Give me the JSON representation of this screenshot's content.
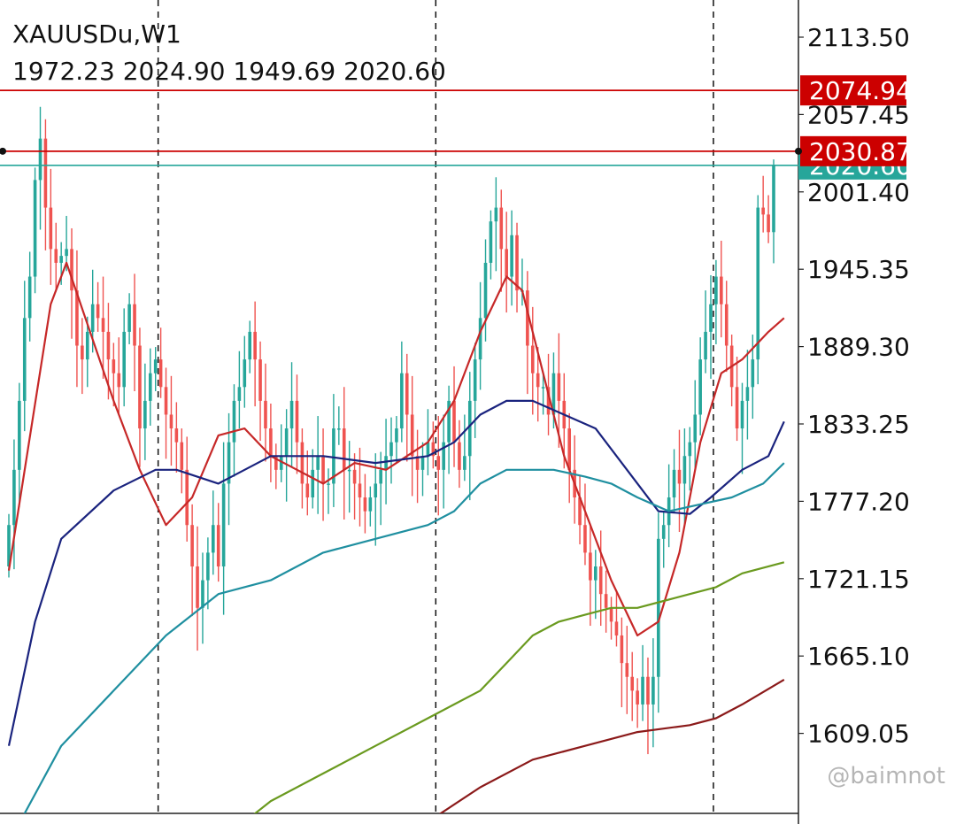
{
  "header": {
    "symbol_timeframe": "XAUUSDu,W1",
    "ohlc": "1972.23 2024.90 1949.69 2020.60"
  },
  "watermark": "@baimnot",
  "colors": {
    "bull": "#26a69a",
    "bear": "#ef5350",
    "hline": "#cc0000",
    "bid_line": "#26a69a",
    "ma_red": "#c62828",
    "ma_navy": "#1a237e",
    "ma_teal": "#1f8fa0",
    "ma_green": "#6a9a1f",
    "ma_maroon": "#8b1a1a"
  },
  "chart_data": {
    "type": "candlestick",
    "symbol": "XAUUSDu",
    "timeframe": "W1",
    "last_bar": {
      "open": 1972.23,
      "high": 2024.9,
      "low": 1949.69,
      "close": 2020.6
    },
    "price_axis": {
      "ticks": [
        "2113.50",
        "2057.45",
        "2001.40",
        "1945.35",
        "1889.30",
        "1833.25",
        "1777.20",
        "1721.15",
        "1665.10",
        "1609.05"
      ],
      "range": [
        1545,
        2140
      ]
    },
    "horizontal_lines": [
      {
        "price": 2074.94,
        "label": "2074.94",
        "color": "#cc0000"
      },
      {
        "price": 2030.87,
        "label": "2030.87",
        "color": "#cc0000"
      }
    ],
    "bid": {
      "price": 2020.6,
      "label": "2020.60",
      "color": "#26a69a"
    },
    "closes": [
      1760,
      1800,
      1850,
      1910,
      1940,
      2010,
      2040,
      1990,
      1960,
      1950,
      1955,
      1960,
      1930,
      1890,
      1880,
      1900,
      1920,
      1910,
      1900,
      1880,
      1870,
      1860,
      1900,
      1920,
      1890,
      1830,
      1850,
      1870,
      1880,
      1860,
      1840,
      1830,
      1820,
      1800,
      1760,
      1730,
      1700,
      1720,
      1740,
      1760,
      1730,
      1790,
      1820,
      1850,
      1860,
      1880,
      1900,
      1880,
      1850,
      1830,
      1810,
      1800,
      1810,
      1830,
      1850,
      1820,
      1790,
      1780,
      1800,
      1810,
      1790,
      1790,
      1830,
      1830,
      1800,
      1800,
      1790,
      1780,
      1770,
      1780,
      1790,
      1800,
      1810,
      1820,
      1830,
      1870,
      1840,
      1810,
      1800,
      1810,
      1820,
      1810,
      1800,
      1820,
      1850,
      1820,
      1800,
      1810,
      1850,
      1880,
      1910,
      1950,
      1980,
      1990,
      1960,
      1940,
      1970,
      1930,
      1930,
      1890,
      1870,
      1860,
      1860,
      1840,
      1870,
      1850,
      1830,
      1800,
      1780,
      1760,
      1740,
      1720,
      1730,
      1710,
      1700,
      1690,
      1680,
      1660,
      1650,
      1640,
      1630,
      1650,
      1630,
      1650,
      1750,
      1760,
      1780,
      1800,
      1790,
      1810,
      1820,
      1840,
      1880,
      1900,
      1920,
      1940,
      1920,
      1890,
      1860,
      1830,
      1850,
      1860,
      1880,
      1990,
      1985,
      1972.23,
      2020.6
    ],
    "moving_averages": [
      {
        "color": "#c62828",
        "values": [
          [
            0,
            1727
          ],
          [
            8,
            1920
          ],
          [
            11,
            1950
          ],
          [
            20,
            1850
          ],
          [
            25,
            1800
          ],
          [
            30,
            1760
          ],
          [
            35,
            1780
          ],
          [
            40,
            1825
          ],
          [
            45,
            1830
          ],
          [
            50,
            1810
          ],
          [
            55,
            1800
          ],
          [
            60,
            1790
          ],
          [
            66,
            1805
          ],
          [
            72,
            1800
          ],
          [
            80,
            1820
          ],
          [
            85,
            1850
          ],
          [
            90,
            1900
          ],
          [
            95,
            1940
          ],
          [
            98,
            1930
          ],
          [
            102,
            1870
          ],
          [
            106,
            1810
          ],
          [
            110,
            1770
          ],
          [
            115,
            1720
          ],
          [
            120,
            1680
          ],
          [
            124,
            1690
          ],
          [
            128,
            1740
          ],
          [
            132,
            1820
          ],
          [
            136,
            1870
          ],
          [
            140,
            1880
          ],
          [
            145,
            1900
          ],
          [
            148,
            1910
          ]
        ]
      },
      {
        "color": "#1a237e",
        "values": [
          [
            0,
            1600
          ],
          [
            5,
            1690
          ],
          [
            10,
            1750
          ],
          [
            20,
            1785
          ],
          [
            28,
            1800
          ],
          [
            32,
            1800
          ],
          [
            40,
            1790
          ],
          [
            50,
            1810
          ],
          [
            60,
            1810
          ],
          [
            70,
            1805
          ],
          [
            80,
            1810
          ],
          [
            85,
            1820
          ],
          [
            90,
            1840
          ],
          [
            95,
            1850
          ],
          [
            100,
            1850
          ],
          [
            106,
            1840
          ],
          [
            112,
            1830
          ],
          [
            118,
            1800
          ],
          [
            124,
            1770
          ],
          [
            130,
            1768
          ],
          [
            134,
            1780
          ],
          [
            140,
            1800
          ],
          [
            145,
            1810
          ],
          [
            148,
            1835
          ]
        ]
      },
      {
        "color": "#1f8fa0",
        "values": [
          [
            0,
            1530
          ],
          [
            10,
            1600
          ],
          [
            20,
            1640
          ],
          [
            30,
            1680
          ],
          [
            40,
            1710
          ],
          [
            50,
            1720
          ],
          [
            60,
            1740
          ],
          [
            70,
            1750
          ],
          [
            80,
            1760
          ],
          [
            85,
            1770
          ],
          [
            90,
            1790
          ],
          [
            95,
            1800
          ],
          [
            100,
            1800
          ],
          [
            104,
            1800
          ],
          [
            110,
            1795
          ],
          [
            115,
            1790
          ],
          [
            120,
            1780
          ],
          [
            126,
            1770
          ],
          [
            132,
            1775
          ],
          [
            138,
            1780
          ],
          [
            144,
            1790
          ],
          [
            148,
            1805
          ]
        ]
      },
      {
        "color": "#6a9a1f",
        "values": [
          [
            40,
            1530
          ],
          [
            50,
            1560
          ],
          [
            60,
            1580
          ],
          [
            70,
            1600
          ],
          [
            80,
            1620
          ],
          [
            85,
            1630
          ],
          [
            90,
            1640
          ],
          [
            95,
            1660
          ],
          [
            100,
            1680
          ],
          [
            105,
            1690
          ],
          [
            110,
            1695
          ],
          [
            115,
            1700
          ],
          [
            120,
            1700
          ],
          [
            125,
            1705
          ],
          [
            130,
            1710
          ],
          [
            135,
            1715
          ],
          [
            140,
            1725
          ],
          [
            148,
            1733
          ]
        ]
      },
      {
        "color": "#8b1a1a",
        "values": [
          [
            82,
            1550
          ],
          [
            90,
            1570
          ],
          [
            100,
            1590
          ],
          [
            110,
            1600
          ],
          [
            120,
            1610
          ],
          [
            130,
            1615
          ],
          [
            135,
            1620
          ],
          [
            140,
            1630
          ],
          [
            148,
            1648
          ]
        ]
      }
    ],
    "vertical_separators_at_bar": [
      28,
      81,
      134
    ]
  }
}
